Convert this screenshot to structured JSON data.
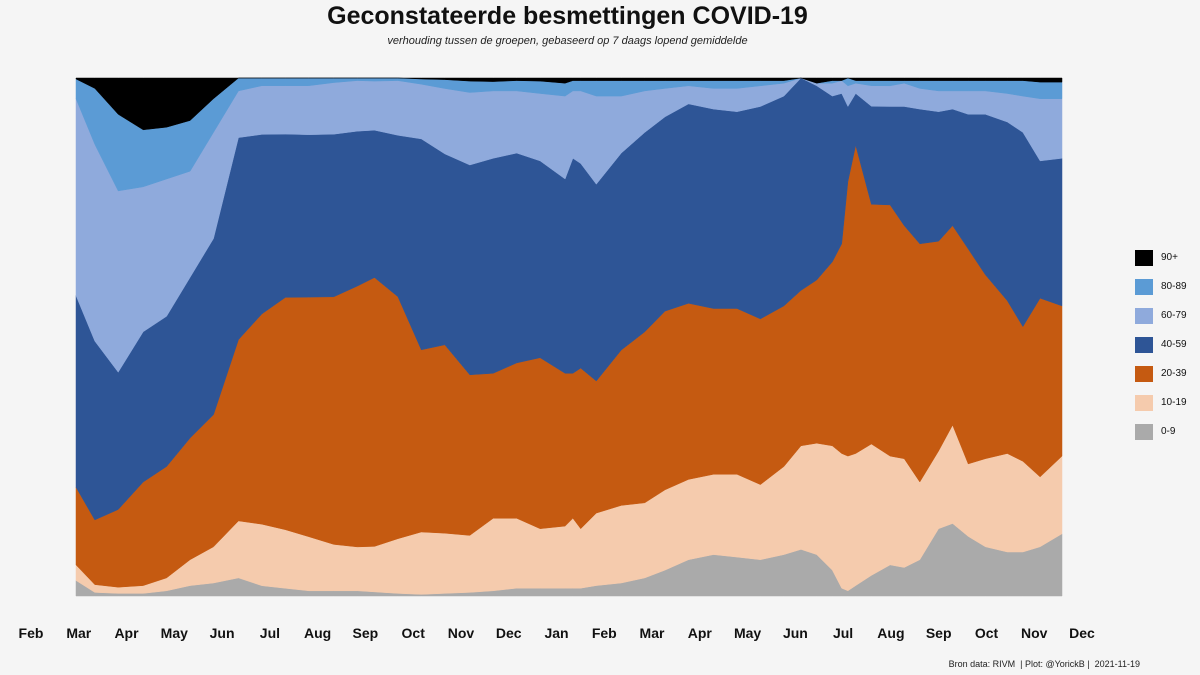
{
  "chart_data": {
    "type": "area",
    "stacking": "percent",
    "title": "Geconstateerde besmettingen COVID-19",
    "subtitle": "verhouding tussen de groepen, gebaseerd op 7 daags lopend gemiddelde",
    "x_tick_labels": [
      "Feb",
      "Mar",
      "Apr",
      "May",
      "Jun",
      "Jul",
      "Aug",
      "Sep",
      "Oct",
      "Nov",
      "Dec",
      "Jan",
      "Feb",
      "Mar",
      "Apr",
      "May",
      "Jun",
      "Jul",
      "Aug",
      "Sep",
      "Oct",
      "Nov",
      "Dec"
    ],
    "x": [
      "2020-02-27",
      "2020-03-10",
      "2020-03-25",
      "2020-04-10",
      "2020-04-25",
      "2020-05-10",
      "2020-05-25",
      "2020-06-10",
      "2020-06-25",
      "2020-07-10",
      "2020-07-25",
      "2020-08-10",
      "2020-08-25",
      "2020-09-05",
      "2020-09-20",
      "2020-10-05",
      "2020-10-20",
      "2020-11-05",
      "2020-11-20",
      "2020-12-05",
      "2020-12-20",
      "2021-01-05",
      "2021-01-10",
      "2021-01-15",
      "2021-01-25",
      "2021-02-10",
      "2021-02-25",
      "2021-03-10",
      "2021-03-25",
      "2021-04-10",
      "2021-04-25",
      "2021-05-10",
      "2021-05-25",
      "2021-06-05",
      "2021-06-15",
      "2021-06-25",
      "2021-07-01",
      "2021-07-05",
      "2021-07-10",
      "2021-07-20",
      "2021-08-01",
      "2021-08-10",
      "2021-08-20",
      "2021-09-01",
      "2021-09-10",
      "2021-09-20",
      "2021-10-01",
      "2021-10-15",
      "2021-10-25",
      "2021-11-05",
      "2021-11-19"
    ],
    "ylim": [
      0,
      100
    ],
    "series": [
      {
        "name": "0-9",
        "color": "#aaaaaa",
        "values": [
          3.0,
          0.7,
          0.5,
          0.5,
          1.0,
          2.0,
          2.5,
          3.5,
          2.0,
          1.5,
          1.0,
          1.0,
          1.0,
          0.8,
          0.5,
          0.3,
          0.5,
          0.7,
          1.0,
          1.5,
          1.5,
          1.5,
          1.5,
          1.5,
          2.0,
          2.5,
          3.5,
          5.0,
          7.0,
          8.0,
          7.5,
          7.0,
          8.0,
          9.0,
          8.0,
          5.0,
          1.5,
          1.0,
          2.0,
          4.0,
          6.0,
          5.5,
          7.0,
          13.0,
          14.0,
          11.5,
          9.5,
          8.5,
          8.5,
          9.5,
          12.0
        ]
      },
      {
        "name": "10-19",
        "color": "#f5cbad",
        "values": [
          3.0,
          1.5,
          1.2,
          1.5,
          2.5,
          5.0,
          7.0,
          11.0,
          12.0,
          11.5,
          10.5,
          9.0,
          8.5,
          8.8,
          10.5,
          12.0,
          11.5,
          11.0,
          14.0,
          13.5,
          11.5,
          12.0,
          13.5,
          11.5,
          14.0,
          15.0,
          14.5,
          15.5,
          15.5,
          15.5,
          16.0,
          14.5,
          17.0,
          20.0,
          21.5,
          24.0,
          26.0,
          26.0,
          25.5,
          25.5,
          21.0,
          21.0,
          15.0,
          15.0,
          19.0,
          14.0,
          17.0,
          19.0,
          17.5,
          13.5,
          15.0
        ]
      },
      {
        "name": "20-39",
        "color": "#c55a11",
        "values": [
          15.0,
          12.5,
          15.0,
          20.0,
          21.5,
          23.5,
          25.5,
          35.0,
          41.0,
          45.5,
          46.5,
          48.0,
          50.5,
          52.0,
          46.5,
          35.0,
          36.0,
          31.0,
          28.0,
          30.0,
          33.0,
          29.5,
          28.0,
          31.0,
          25.5,
          30.0,
          33.0,
          34.5,
          34.0,
          32.0,
          32.0,
          32.0,
          31.0,
          30.0,
          31.5,
          35.5,
          40.5,
          53.0,
          59.5,
          46.5,
          48.5,
          45.0,
          46.0,
          40.5,
          38.5,
          41.5,
          35.5,
          29.5,
          26.0,
          34.5,
          29.0
        ]
      },
      {
        "name": "40-59",
        "color": "#2e5596",
        "values": [
          37.0,
          34.5,
          26.5,
          29.0,
          29.0,
          31.0,
          34.0,
          39.0,
          35.0,
          32.0,
          31.5,
          31.5,
          30.0,
          28.5,
          31.0,
          40.5,
          36.5,
          40.5,
          41.5,
          40.5,
          38.0,
          37.5,
          41.5,
          39.5,
          38.0,
          38.0,
          38.5,
          37.5,
          38.5,
          38.5,
          38.0,
          41.0,
          40.5,
          41.0,
          37.5,
          32.0,
          29.0,
          14.5,
          10.0,
          19.0,
          19.0,
          23.0,
          26.0,
          25.0,
          22.5,
          26.0,
          31.0,
          34.5,
          37.5,
          26.5,
          28.5
        ]
      },
      {
        "name": "60-79",
        "color": "#8faadc",
        "values": [
          38.0,
          38.0,
          35.0,
          28.0,
          26.5,
          20.5,
          20.5,
          9.0,
          9.5,
          9.5,
          9.5,
          10.0,
          9.8,
          9.5,
          10.5,
          10.5,
          12.5,
          14.0,
          13.0,
          12.0,
          13.0,
          16.0,
          13.0,
          14.0,
          17.0,
          11.0,
          8.0,
          5.5,
          3.5,
          4.0,
          4.5,
          4.0,
          2.5,
          0.0,
          0.5,
          2.5,
          2.5,
          4.0,
          2.0,
          4.0,
          4.0,
          4.5,
          4.0,
          4.0,
          3.5,
          4.5,
          4.5,
          5.5,
          7.0,
          12.0,
          11.5
        ]
      },
      {
        "name": "80-89",
        "color": "#5b9bd5",
        "values": [
          3.8,
          10.8,
          14.8,
          11.0,
          10.0,
          9.8,
          6.5,
          2.5,
          1.5,
          1.5,
          1.5,
          0.9,
          0.5,
          0.6,
          0.5,
          1.0,
          1.7,
          2.2,
          1.8,
          2.0,
          2.4,
          2.5,
          2.0,
          2.0,
          3.0,
          3.0,
          2.0,
          1.5,
          1.0,
          1.5,
          1.5,
          1.0,
          0.5,
          0.0,
          0.0,
          0.5,
          0.0,
          1.5,
          0.5,
          1.0,
          1.0,
          0.5,
          1.5,
          2.0,
          2.0,
          2.0,
          2.0,
          2.5,
          3.0,
          3.2,
          3.2
        ]
      },
      {
        "name": "90+",
        "color": "#000000",
        "values": [
          0.2,
          2.0,
          7.0,
          10.0,
          9.5,
          8.2,
          4.0,
          0.0,
          0.0,
          0.0,
          0.0,
          0.0,
          0.0,
          0.0,
          0.0,
          0.2,
          0.3,
          0.6,
          0.7,
          0.5,
          0.6,
          1.0,
          0.5,
          0.5,
          0.5,
          0.5,
          0.5,
          0.5,
          0.5,
          0.5,
          0.5,
          0.5,
          0.5,
          0.0,
          1.0,
          0.5,
          0.5,
          0.0,
          0.5,
          0.5,
          0.5,
          0.5,
          0.5,
          0.5,
          0.5,
          0.5,
          0.5,
          0.5,
          0.5,
          0.8,
          0.8
        ]
      }
    ],
    "legend_position": "right",
    "legend_order": [
      "90+",
      "80-89",
      "60-79",
      "40-59",
      "20-39",
      "10-19",
      "0-9"
    ],
    "grid": false
  },
  "caption": "Bron data: RIVM  | Plot: @YorickB |  2021-11-19"
}
